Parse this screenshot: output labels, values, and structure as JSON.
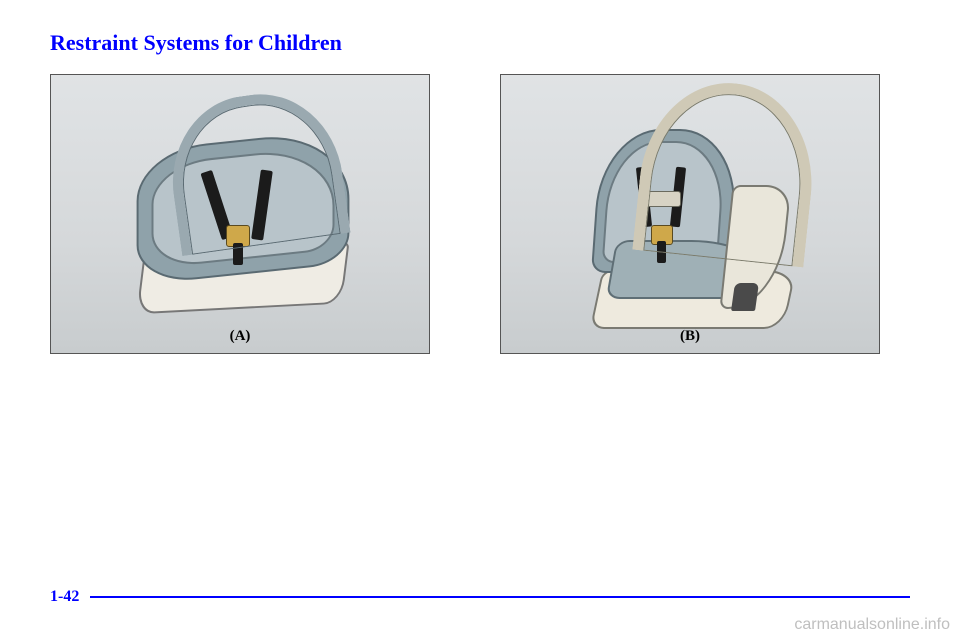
{
  "heading": "Restraint Systems for Children",
  "figures": {
    "a": {
      "caption": "(A)"
    },
    "b": {
      "caption": "(B)"
    }
  },
  "page_number": "1-42",
  "watermark": "carmanualsonline.info",
  "colors": {
    "accent": "#0000ff",
    "watermark": "#bfbfbf",
    "figure_bg_top": "#e0e3e5",
    "figure_bg_bottom": "#c8ccce"
  }
}
